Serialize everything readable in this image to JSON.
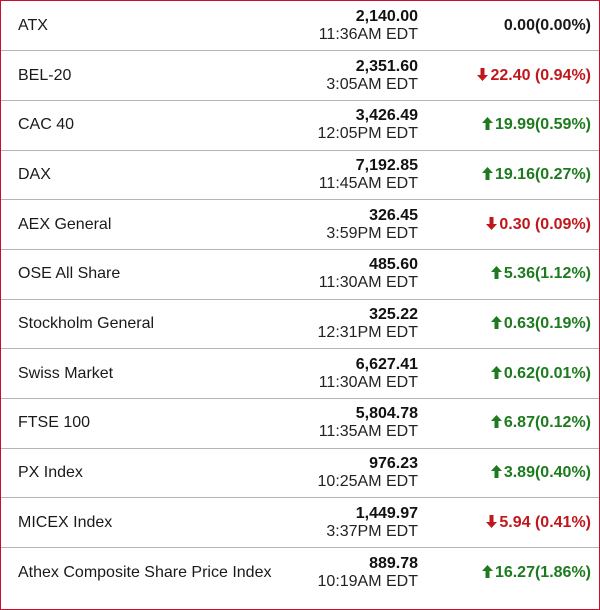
{
  "indices": [
    {
      "name": "ATX",
      "price": "2,140.00",
      "time": "11:36AM EDT",
      "change": "0.00(0.00%)",
      "direction": "flat"
    },
    {
      "name": "BEL-20",
      "price": "2,351.60",
      "time": "3:05AM EDT",
      "change": "22.40 (0.94%)",
      "direction": "down"
    },
    {
      "name": "CAC 40",
      "price": "3,426.49",
      "time": "12:05PM EDT",
      "change": "19.99(0.59%)",
      "direction": "up"
    },
    {
      "name": "DAX",
      "price": "7,192.85",
      "time": "11:45AM EDT",
      "change": "19.16(0.27%)",
      "direction": "up"
    },
    {
      "name": "AEX General",
      "price": "326.45",
      "time": "3:59PM EDT",
      "change": "0.30 (0.09%)",
      "direction": "down"
    },
    {
      "name": "OSE All Share",
      "price": "485.60",
      "time": "11:30AM EDT",
      "change": "5.36(1.12%)",
      "direction": "up"
    },
    {
      "name": "Stockholm General",
      "price": "325.22",
      "time": "12:31PM EDT",
      "change": "0.63(0.19%)",
      "direction": "up"
    },
    {
      "name": "Swiss Market",
      "price": "6,627.41",
      "time": "11:30AM EDT",
      "change": "0.62(0.01%)",
      "direction": "up"
    },
    {
      "name": "FTSE 100",
      "price": "5,804.78",
      "time": "11:35AM EDT",
      "change": "6.87(0.12%)",
      "direction": "up"
    },
    {
      "name": "PX Index",
      "price": "976.23",
      "time": "10:25AM EDT",
      "change": "3.89(0.40%)",
      "direction": "up"
    },
    {
      "name": "MICEX Index",
      "price": "1,449.97",
      "time": "3:37PM EDT",
      "change": "5.94 (0.41%)",
      "direction": "down"
    },
    {
      "name": "Athex Composite Share Price Index",
      "price": "889.78",
      "time": "10:19AM EDT",
      "change": "16.27(1.86%)",
      "direction": "up"
    }
  ],
  "colors": {
    "up": "#1e7a1e",
    "down": "#c0171c",
    "border": "#c8102e"
  },
  "icons": {
    "up": "arrow-up-icon",
    "down": "arrow-down-icon"
  }
}
